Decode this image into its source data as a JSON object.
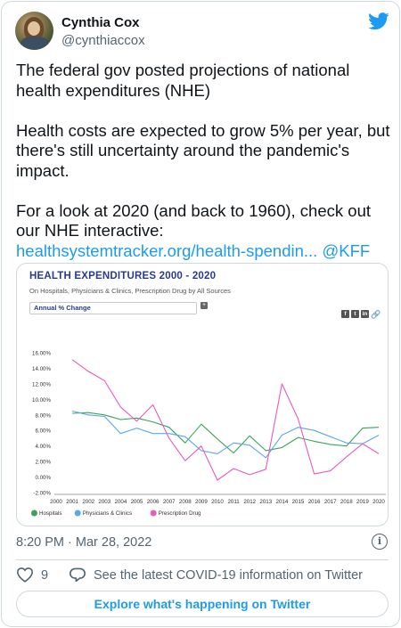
{
  "author": {
    "name": "Cynthia Cox",
    "handle": "@cynthiaccox"
  },
  "tweet": {
    "paragraph1": "The federal gov posted projections of national health expenditures (NHE)",
    "paragraph2": "Health costs are expected to grow 5% per year, but there's still uncertainty around the pandemic's impact.",
    "paragraph3_prefix": "For a look at 2020 (and back to 1960), check out our NHE interactive: ",
    "link_text": "healthsystemtracker.org/health-spendin...",
    "mention": "@KFF"
  },
  "chart_card": {
    "dropdown_value": "Annual % Change",
    "plus_label": "+",
    "share_icons": [
      "facebook-icon",
      "twitter-icon",
      "linkedin-icon",
      "link-icon"
    ]
  },
  "chart_data": {
    "type": "line",
    "title": "HEALTH EXPENDITURES 2000 - 2020",
    "subtitle": "On Hospitals, Physicians & Clinics, Prescription Drug by All Sources",
    "x": [
      2000,
      2001,
      2002,
      2003,
      2004,
      2005,
      2006,
      2007,
      2008,
      2009,
      2010,
      2011,
      2012,
      2013,
      2014,
      2015,
      2016,
      2017,
      2018,
      2019,
      2020
    ],
    "ylim": [
      -2,
      16
    ],
    "yticks": [
      "16.00%",
      "14.00%",
      "12.00%",
      "10.00%",
      "8.00%",
      "6.00%",
      "4.00%",
      "2.00%",
      "0.00%",
      "-2.00%"
    ],
    "ytick_values": [
      16,
      14,
      12,
      10,
      8,
      6,
      4,
      2,
      0,
      -2
    ],
    "grid": false,
    "legend_position": "bottom-left",
    "series": [
      {
        "name": "Hospitals",
        "color": "#3aa35a",
        "values": [
          null,
          8.2,
          8.3,
          8.0,
          7.4,
          7.6,
          7.1,
          6.4,
          4.4,
          6.8,
          4.9,
          3.1,
          5.3,
          3.4,
          3.8,
          5.1,
          4.6,
          4.2,
          4.0,
          6.3,
          6.4
        ]
      },
      {
        "name": "Physicians & Clinics",
        "color": "#5aa8e6",
        "values": [
          null,
          8.5,
          8.0,
          7.8,
          5.6,
          6.3,
          5.6,
          5.6,
          5.2,
          3.4,
          3.0,
          4.4,
          4.1,
          2.5,
          5.4,
          6.4,
          6.0,
          5.2,
          4.4,
          4.3,
          5.4
        ]
      },
      {
        "name": "Prescription Drug",
        "color": "#e85bbd",
        "values": [
          null,
          15.1,
          13.6,
          12.4,
          9.0,
          7.2,
          9.3,
          5.0,
          2.1,
          4.0,
          -0.4,
          1.1,
          0.3,
          1.0,
          12.0,
          7.5,
          0.4,
          0.8,
          2.6,
          4.3,
          3.0
        ]
      }
    ]
  },
  "meta": {
    "timestamp": "8:20 PM · Mar 28, 2022",
    "info_icon": "info-icon",
    "like_count": "9",
    "covid_text": "See the latest COVID-19 information on Twitter",
    "explore_label": "Explore what's happening on Twitter",
    "twitter_blue": "#1d9bf0"
  }
}
